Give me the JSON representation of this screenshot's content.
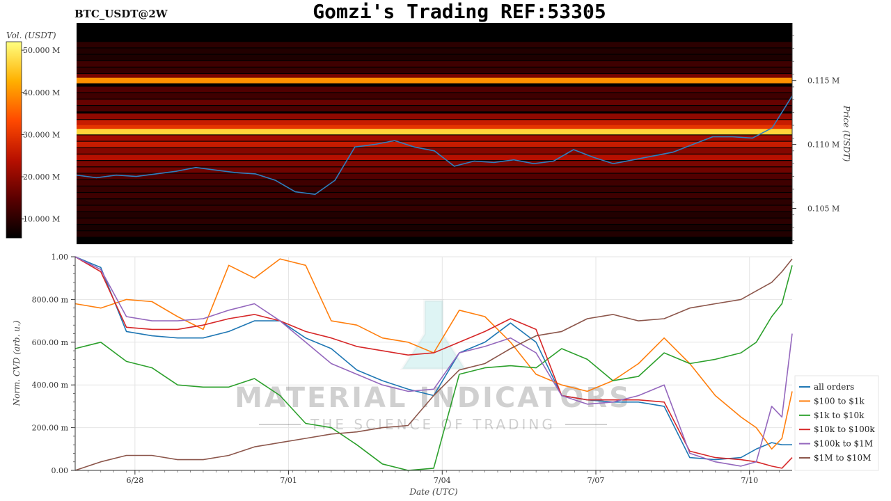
{
  "header": {
    "symbol": "BTC_USDT@2W",
    "title": "Gomzi's Trading REF:53305"
  },
  "watermark": {
    "brand": "MATERIAL INDICATORS",
    "tagline": "THE SCIENCE OF TRADING"
  },
  "chart_data": [
    {
      "type": "heatmap",
      "title": "",
      "colorbar": {
        "label": "Vol. (USDT)",
        "ticks": [
          {
            "value": 10,
            "label": "10.000 M"
          },
          {
            "value": 20,
            "label": "20.000 M"
          },
          {
            "value": 30,
            "label": "30.000 M"
          },
          {
            "value": 40,
            "label": "40.000 M"
          },
          {
            "value": 50,
            "label": "50.000 M"
          }
        ],
        "range": [
          5.5,
          52
        ],
        "colors": [
          "#000000",
          "#5a0000",
          "#b81000",
          "#ff4a00",
          "#ffb000",
          "#ffff80"
        ]
      },
      "ylabel": "Price (USDT)",
      "ylim": [
        0.1022,
        0.1195
      ],
      "yticks": [
        {
          "value": 0.105,
          "label": "0.105 M"
        },
        {
          "value": 0.11,
          "label": "0.110 M"
        },
        {
          "value": 0.115,
          "label": "0.115 M"
        }
      ],
      "xlim": [
        0,
        14
      ],
      "x_days": [
        0,
        0.5,
        1,
        1.5,
        2,
        2.5,
        3,
        3.5,
        4,
        4.5,
        5,
        5.5,
        6,
        6.5,
        7,
        7.5,
        8,
        8.5,
        9,
        9.5,
        10,
        10.5,
        11,
        11.5,
        12,
        12.5,
        13,
        13.3,
        13.6,
        13.8,
        14
      ],
      "price_line": {
        "color": "#2f7fbf",
        "values": [
          0.1076,
          0.1074,
          0.1076,
          0.1075,
          0.1077,
          0.1079,
          0.1082,
          0.108,
          0.1078,
          0.1077,
          0.1072,
          0.1063,
          0.1061,
          0.1072,
          0.1098,
          0.11,
          0.1103,
          0.1098,
          0.1095,
          0.1083,
          0.1087,
          0.1086,
          0.1088,
          0.1085,
          0.1087,
          0.1096,
          0.109,
          0.1085,
          0.1088,
          0.1091,
          0.1094,
          0.11,
          0.1106,
          0.1106,
          0.1105,
          0.1113,
          0.1138
        ]
      },
      "levels": [
        {
          "price": 0.1178,
          "volume": 10
        },
        {
          "price": 0.1173,
          "volume": 9
        },
        {
          "price": 0.1168,
          "volume": 8.5
        },
        {
          "price": 0.1163,
          "volume": 12
        },
        {
          "price": 0.1158,
          "volume": 11
        },
        {
          "price": 0.1153,
          "volume": 18
        },
        {
          "price": 0.115,
          "volume": 40
        },
        {
          "price": 0.1143,
          "volume": 14
        },
        {
          "price": 0.1138,
          "volume": 12
        },
        {
          "price": 0.1133,
          "volume": 16
        },
        {
          "price": 0.1128,
          "volume": 13
        },
        {
          "price": 0.1122,
          "volume": 20
        },
        {
          "price": 0.1117,
          "volume": 26
        },
        {
          "price": 0.1113,
          "volume": 30
        },
        {
          "price": 0.111,
          "volume": 47
        },
        {
          "price": 0.1105,
          "volume": 22
        },
        {
          "price": 0.11,
          "volume": 26
        },
        {
          "price": 0.1095,
          "volume": 19
        },
        {
          "price": 0.109,
          "volume": 24
        },
        {
          "price": 0.1085,
          "volume": 18
        },
        {
          "price": 0.108,
          "volume": 17
        },
        {
          "price": 0.1075,
          "volume": 14
        },
        {
          "price": 0.107,
          "volume": 12
        },
        {
          "price": 0.1065,
          "volume": 11
        },
        {
          "price": 0.106,
          "volume": 12
        },
        {
          "price": 0.1055,
          "volume": 10
        },
        {
          "price": 0.105,
          "volume": 11
        },
        {
          "price": 0.1045,
          "volume": 9
        },
        {
          "price": 0.104,
          "volume": 10
        },
        {
          "price": 0.1035,
          "volume": 8
        },
        {
          "price": 0.103,
          "volume": 9
        }
      ]
    },
    {
      "type": "line",
      "xlabel": "Date (UTC)",
      "ylabel": "Norm. CVD (arb. u.)",
      "ylim": [
        0,
        1
      ],
      "xlim": [
        0,
        14
      ],
      "xticks": [
        {
          "value": 1.167,
          "label": "6/28"
        },
        {
          "value": 4.167,
          "label": "7/01"
        },
        {
          "value": 7.167,
          "label": "7/04"
        },
        {
          "value": 10.167,
          "label": "7/07"
        },
        {
          "value": 13.167,
          "label": "7/10"
        }
      ],
      "yticks": [
        {
          "value": 0,
          "label": "0.00"
        },
        {
          "value": 0.2,
          "label": "200.00 m"
        },
        {
          "value": 0.4,
          "label": "400.00 m"
        },
        {
          "value": 0.6,
          "label": "600.00 m"
        },
        {
          "value": 0.8,
          "label": "800.00 m"
        },
        {
          "value": 1.0,
          "label": "1.00"
        }
      ],
      "grid": true,
      "legend": "right",
      "x": [
        0,
        0.5,
        1,
        1.5,
        2,
        2.5,
        3,
        3.5,
        4,
        4.5,
        5,
        5.5,
        6,
        6.5,
        7,
        7.5,
        8,
        8.5,
        9,
        9.5,
        10,
        10.5,
        11,
        11.5,
        12,
        12.5,
        13,
        13.3,
        13.6,
        13.8,
        14
      ],
      "series": [
        {
          "name": "all orders",
          "color": "#1f77b4",
          "values": [
            1.0,
            0.95,
            0.65,
            0.63,
            0.62,
            0.62,
            0.65,
            0.7,
            0.7,
            0.62,
            0.57,
            0.47,
            0.42,
            0.38,
            0.35,
            0.55,
            0.6,
            0.69,
            0.6,
            0.35,
            0.33,
            0.32,
            0.32,
            0.3,
            0.06,
            0.05,
            0.06,
            0.1,
            0.13,
            0.12,
            0.12
          ]
        },
        {
          "name": "$100 to $1k",
          "color": "#ff7f0e",
          "values": [
            0.78,
            0.76,
            0.8,
            0.79,
            0.72,
            0.66,
            0.96,
            0.9,
            0.99,
            0.96,
            0.7,
            0.68,
            0.62,
            0.6,
            0.55,
            0.75,
            0.72,
            0.6,
            0.45,
            0.4,
            0.37,
            0.42,
            0.5,
            0.62,
            0.5,
            0.35,
            0.25,
            0.2,
            0.1,
            0.15,
            0.37
          ]
        },
        {
          "name": "$1k to $10k",
          "color": "#2ca02c",
          "values": [
            0.57,
            0.6,
            0.51,
            0.48,
            0.4,
            0.39,
            0.39,
            0.43,
            0.35,
            0.22,
            0.2,
            0.12,
            0.03,
            0.0,
            0.01,
            0.45,
            0.48,
            0.49,
            0.48,
            0.57,
            0.52,
            0.42,
            0.44,
            0.55,
            0.5,
            0.52,
            0.55,
            0.6,
            0.72,
            0.78,
            0.96
          ]
        },
        {
          "name": "$10k to $100k",
          "color": "#d62728",
          "values": [
            1.0,
            0.93,
            0.67,
            0.66,
            0.66,
            0.68,
            0.71,
            0.73,
            0.7,
            0.65,
            0.62,
            0.58,
            0.56,
            0.54,
            0.55,
            0.6,
            0.65,
            0.71,
            0.66,
            0.35,
            0.33,
            0.33,
            0.33,
            0.32,
            0.09,
            0.06,
            0.05,
            0.04,
            0.02,
            0.01,
            0.06
          ]
        },
        {
          "name": "$100k to $1M",
          "color": "#9467bd",
          "values": [
            1.0,
            0.94,
            0.72,
            0.7,
            0.7,
            0.71,
            0.75,
            0.78,
            0.7,
            0.6,
            0.5,
            0.45,
            0.4,
            0.37,
            0.38,
            0.55,
            0.58,
            0.62,
            0.55,
            0.35,
            0.31,
            0.32,
            0.35,
            0.4,
            0.08,
            0.04,
            0.02,
            0.04,
            0.3,
            0.25,
            0.64
          ]
        },
        {
          "name": "$1M to $10M",
          "color": "#8c564b",
          "values": [
            0.0,
            0.04,
            0.07,
            0.07,
            0.05,
            0.05,
            0.07,
            0.11,
            0.13,
            0.15,
            0.17,
            0.18,
            0.2,
            0.21,
            0.35,
            0.47,
            0.5,
            0.57,
            0.63,
            0.65,
            0.71,
            0.73,
            0.7,
            0.71,
            0.76,
            0.78,
            0.8,
            0.84,
            0.88,
            0.93,
            0.99
          ]
        }
      ]
    }
  ]
}
